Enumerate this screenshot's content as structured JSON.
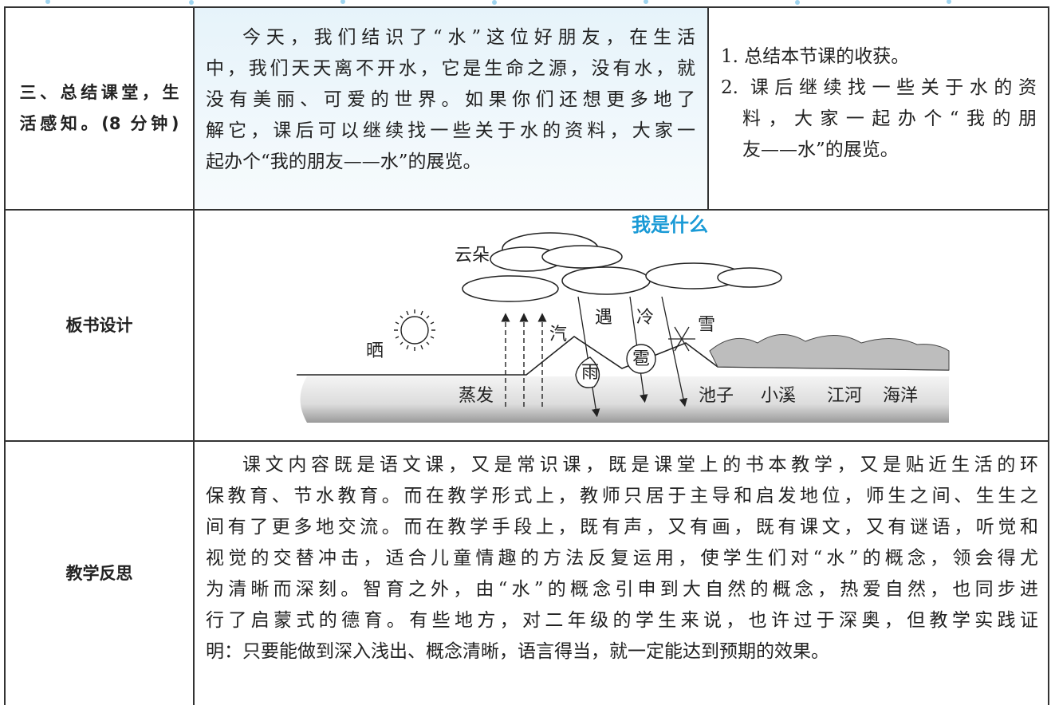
{
  "table": {
    "rows": [
      {
        "label_lines": [
          "三、总结课堂，生",
          "活感知。(8 分钟)"
        ],
        "content_lines": [
          "今天，我们结识了“水”这位好朋友，在生活",
          "中，我们天天离不开水，它是生命之源，没有水，就",
          "没有美丽、可爱的世界。如果你们还想更多地了",
          "解它，课后可以继续找一些关于水的资料，大家一",
          "起办个“我的朋友——水”的展览。"
        ],
        "step_lines": [
          "1. 总结本节课的收获。",
          "2. 课后继续找一些关于水的资",
          "料，大家一起办个“我的朋",
          "友——水”的展览。"
        ]
      },
      {
        "label": "板书设计",
        "diagram": {
          "title": "我是什么",
          "cloud": "云朵",
          "sun": "晒",
          "vapor": "汽",
          "meet": "遇",
          "cold": "冷",
          "snow": "雪",
          "rain": "雨",
          "hail": "雹",
          "evaporate": "蒸发",
          "pond": "池子",
          "brook": "小溪",
          "river": "江河",
          "sea": "海洋"
        }
      },
      {
        "label": "教学反思",
        "content_lines": [
          "课文内容既是语文课，又是常识课，既是课堂上的书本教学，又是贴近生活的环",
          "保教育、节水教育。而在教学形式上，教师只居于主导和启发地位，师生之间、生生之",
          "间有了更多地交流。而在教学手段上，既有声，又有画，既有课文，又有谜语，听觉和",
          "视觉的交替冲击，适合儿童情趣的方法反复运用，使学生们对“水”的概念，领会得尤",
          "为清晰而深刻。智育之外，由“水”的概念引申到大自然的概念，热爱自然，也同步进",
          "行了启蒙式的德育。有些地方，对二年级的学生来说，也许过于深奥，但教学实践证",
          "明：只要能做到深入浅出、概念清晰，语言得当，就一定能达到预期的效果。"
        ]
      }
    ]
  }
}
